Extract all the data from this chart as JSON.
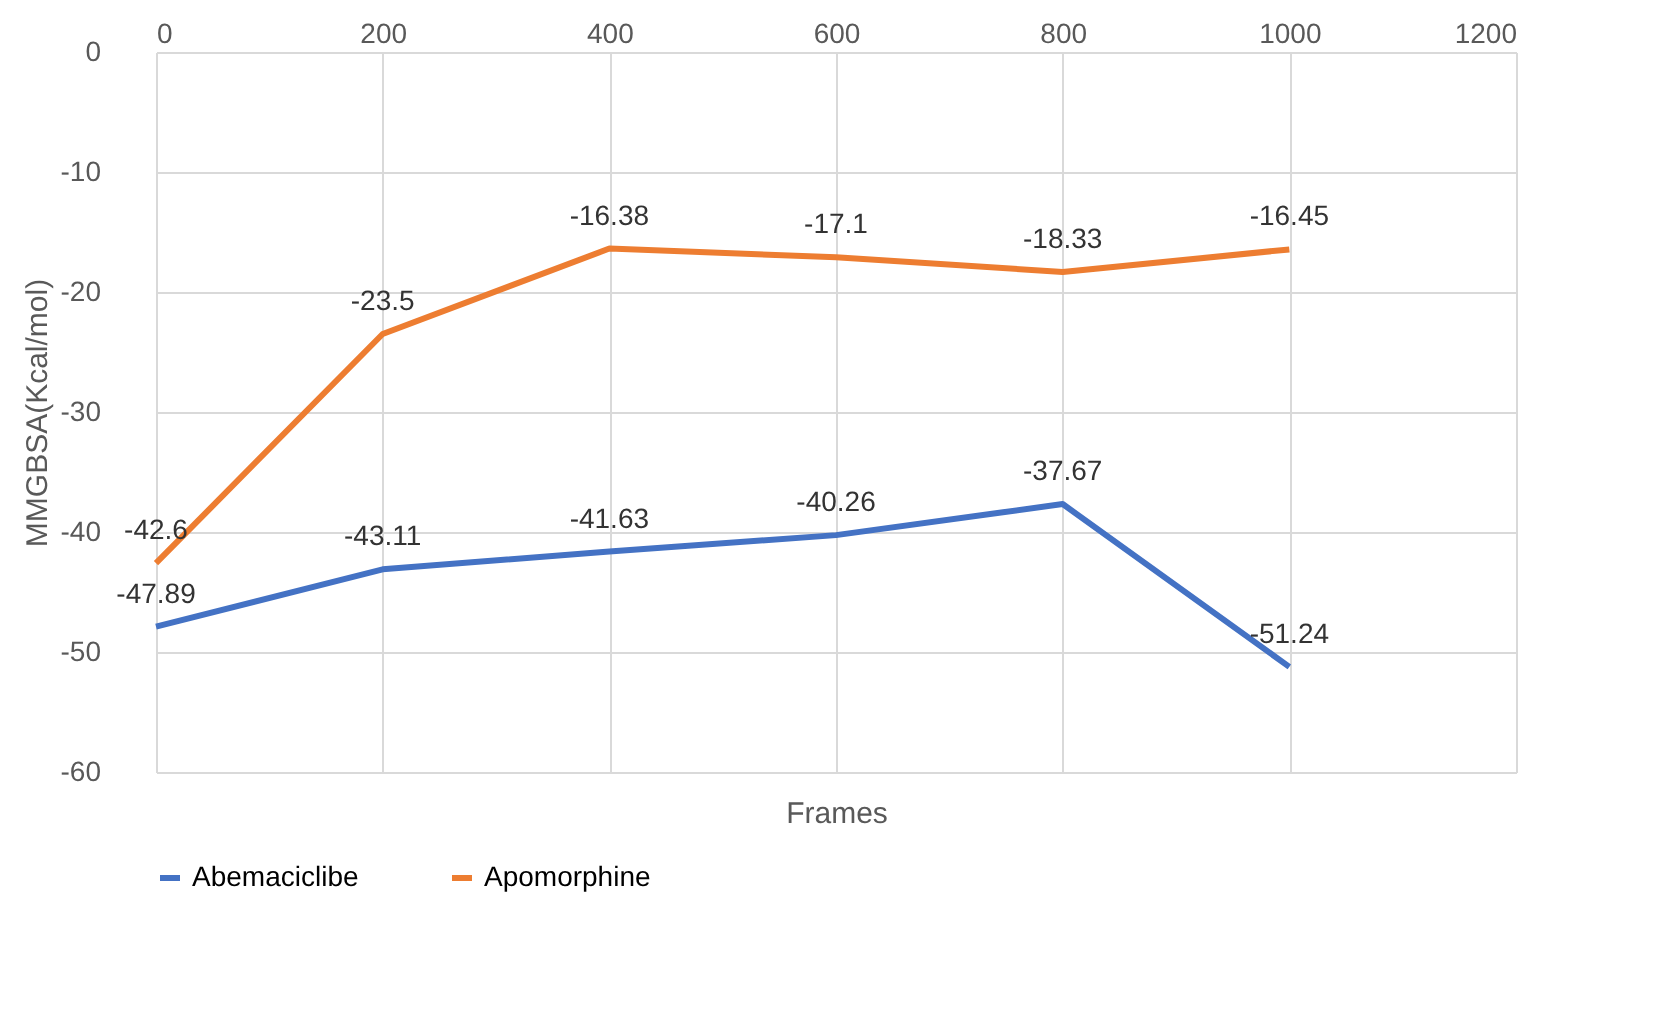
{
  "chart_data": {
    "type": "line",
    "xlabel": "Frames",
    "ylabel": "MMGBSA(Kcal/mol)",
    "x": [
      0,
      200,
      400,
      600,
      800,
      1000
    ],
    "series": [
      {
        "name": "Abemaciclibe",
        "color": "#4472c4",
        "values": [
          -47.89,
          -43.11,
          -41.63,
          -40.26,
          -37.67,
          -51.24
        ]
      },
      {
        "name": "Apomorphine",
        "color": "#ed7d31",
        "values": [
          -42.6,
          -23.5,
          -16.38,
          -17.1,
          -18.33,
          -16.45
        ]
      }
    ],
    "xlim": [
      0,
      1200
    ],
    "xticks": [
      0,
      200,
      400,
      600,
      800,
      1000,
      1200
    ],
    "ylim": [
      -60,
      0
    ],
    "yticks": [
      -60,
      -50,
      -40,
      -30,
      -20,
      -10,
      0
    ],
    "grid": true,
    "legend": "bottom",
    "data_labels": true,
    "marker": "none",
    "line_style": "solid"
  }
}
